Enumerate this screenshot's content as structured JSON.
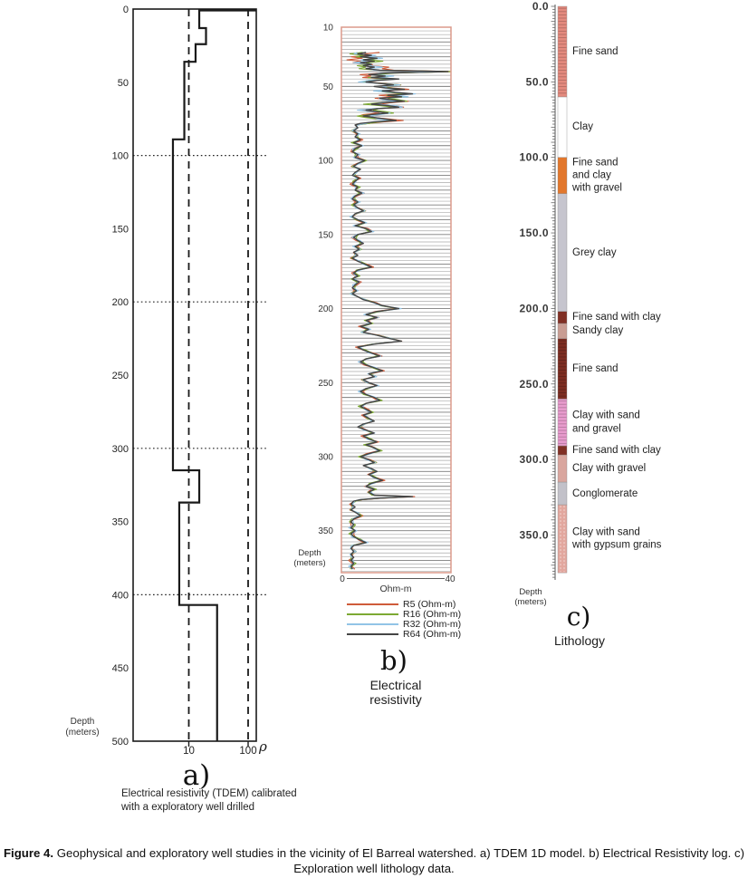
{
  "figure_caption": {
    "label": "Figure 4.",
    "text": " Geophysical and exploratory well studies in the vicinity of El Barreal watershed. a) TDEM 1D model. b) Electrical Resistivity log. c) Exploration well lithology data."
  },
  "panel_a": {
    "letter": "a)",
    "caption_line1": "Electrical resistivity (TDEM) calibrated",
    "caption_line2": "with a exploratory well drilled",
    "depth_label_line1": "Depth",
    "depth_label_line2": "(meters)",
    "x_symbol": "ρ"
  },
  "panel_b": {
    "letter": "b)",
    "title_line1": "Electrical",
    "title_line2": "resistivity",
    "x_label": "Ohm-m",
    "depth_label_line1": "Depth",
    "depth_label_line2": "(meters)"
  },
  "panel_c": {
    "letter": "c)",
    "title": "Lithology",
    "depth_label_line1": "Depth",
    "depth_label_line2": "(meters)"
  },
  "chart_data": [
    {
      "id": "a",
      "type": "line",
      "subtype": "step-resistivity-model",
      "title": "TDEM 1D model",
      "x_scale": "log",
      "x_ticks": [
        10,
        100
      ],
      "x_label": "ρ",
      "y_label": "Depth (meters)",
      "y_range": [
        0,
        500
      ],
      "y_ticks": [
        0,
        50,
        100,
        150,
        200,
        250,
        300,
        350,
        400,
        450,
        500
      ],
      "dashed_x_values": [
        10,
        100
      ],
      "dotted_y_values": [
        100,
        200,
        300,
        400
      ],
      "layers_depth_from_to_resistivity_ohmm": [
        [
          0,
          13,
          15.0
        ],
        [
          13,
          24,
          19.5
        ],
        [
          24,
          36,
          13.0
        ],
        [
          36,
          89,
          8.4
        ],
        [
          89,
          315,
          5.4
        ],
        [
          315,
          337,
          15.0
        ],
        [
          337,
          407,
          6.9
        ],
        [
          407,
          500,
          30.0
        ]
      ]
    },
    {
      "id": "b",
      "type": "line",
      "title": "Electrical resistivity",
      "x_label": "Ohm-m",
      "x_range": [
        0,
        40
      ],
      "y_label": "Depth (meters)",
      "y_ticks": [
        10,
        50,
        100,
        150,
        200,
        250,
        300,
        350
      ],
      "y_max_depth": 378,
      "grid_spacing_m": 2.5,
      "legend": [
        {
          "name": "R5 (Ohm-m)",
          "color": "#cf5b3a"
        },
        {
          "name": "R16 (Ohm-m)",
          "color": "#7ca933"
        },
        {
          "name": "R32 (Ohm-m)",
          "color": "#92c4e6"
        },
        {
          "name": "R64 (Ohm-m)",
          "color": "#454545"
        }
      ],
      "base_series": "R64 (Ohm-m)",
      "points_depth_ohm": [
        [
          27,
          9
        ],
        [
          28,
          6
        ],
        [
          29,
          11
        ],
        [
          30,
          7
        ],
        [
          31,
          13
        ],
        [
          32,
          8
        ],
        [
          33,
          12
        ],
        [
          34,
          7
        ],
        [
          35,
          11
        ],
        [
          36,
          8
        ],
        [
          37,
          12
        ],
        [
          38,
          9
        ],
        [
          39,
          14
        ],
        [
          40,
          39
        ],
        [
          41,
          16
        ],
        [
          42,
          10
        ],
        [
          43,
          16
        ],
        [
          44,
          11
        ],
        [
          45,
          21
        ],
        [
          46,
          13
        ],
        [
          47,
          9
        ],
        [
          48,
          14
        ],
        [
          49,
          19
        ],
        [
          50,
          12
        ],
        [
          51,
          16
        ],
        [
          52,
          23
        ],
        [
          53,
          15
        ],
        [
          54,
          20
        ],
        [
          55,
          26
        ],
        [
          56,
          17
        ],
        [
          57,
          22
        ],
        [
          58,
          14
        ],
        [
          59,
          18
        ],
        [
          60,
          23
        ],
        [
          61,
          15
        ],
        [
          62,
          11
        ],
        [
          63,
          17
        ],
        [
          64,
          21
        ],
        [
          65,
          13
        ],
        [
          66,
          9
        ],
        [
          67,
          13
        ],
        [
          68,
          17
        ],
        [
          69,
          11
        ],
        [
          70,
          8
        ],
        [
          71,
          12
        ],
        [
          72,
          16
        ],
        [
          73,
          20
        ],
        [
          74,
          12
        ],
        [
          75,
          7
        ],
        [
          76,
          5
        ],
        [
          78,
          6
        ],
        [
          80,
          4.5
        ],
        [
          82,
          6
        ],
        [
          84,
          5
        ],
        [
          86,
          7
        ],
        [
          88,
          4.5
        ],
        [
          90,
          7.5
        ],
        [
          92,
          5
        ],
        [
          94,
          4
        ],
        [
          96,
          6
        ],
        [
          98,
          5
        ],
        [
          100,
          8.5
        ],
        [
          102,
          6
        ],
        [
          104,
          4.5
        ],
        [
          106,
          7
        ],
        [
          108,
          5
        ],
        [
          110,
          4
        ],
        [
          112,
          6.5
        ],
        [
          114,
          5
        ],
        [
          116,
          4
        ],
        [
          118,
          6
        ],
        [
          120,
          5
        ],
        [
          122,
          7.5
        ],
        [
          124,
          5
        ],
        [
          126,
          4
        ],
        [
          128,
          6
        ],
        [
          130,
          4.5
        ],
        [
          132,
          6
        ],
        [
          134,
          8
        ],
        [
          136,
          5
        ],
        [
          138,
          4
        ],
        [
          140,
          6
        ],
        [
          142,
          8.5
        ],
        [
          144,
          5
        ],
        [
          146,
          9
        ],
        [
          148,
          11
        ],
        [
          150,
          6
        ],
        [
          152,
          4.5
        ],
        [
          154,
          6
        ],
        [
          156,
          8
        ],
        [
          158,
          5
        ],
        [
          160,
          6.5
        ],
        [
          162,
          4.5
        ],
        [
          164,
          6
        ],
        [
          166,
          4
        ],
        [
          168,
          6
        ],
        [
          170,
          8.5
        ],
        [
          172,
          11
        ],
        [
          174,
          6
        ],
        [
          176,
          4.5
        ],
        [
          178,
          6
        ],
        [
          180,
          4
        ],
        [
          182,
          6.5
        ],
        [
          184,
          5
        ],
        [
          186,
          4
        ],
        [
          188,
          5.5
        ],
        [
          190,
          4
        ],
        [
          192,
          6
        ],
        [
          194,
          8
        ],
        [
          196,
          12
        ],
        [
          198,
          15
        ],
        [
          200,
          21
        ],
        [
          202,
          13
        ],
        [
          204,
          9
        ],
        [
          206,
          13
        ],
        [
          208,
          9
        ],
        [
          210,
          11
        ],
        [
          212,
          7
        ],
        [
          214,
          10
        ],
        [
          216,
          8
        ],
        [
          218,
          13
        ],
        [
          220,
          17
        ],
        [
          222,
          22
        ],
        [
          224,
          12
        ],
        [
          226,
          6
        ],
        [
          228,
          8
        ],
        [
          230,
          11
        ],
        [
          232,
          14
        ],
        [
          234,
          9
        ],
        [
          236,
          7
        ],
        [
          238,
          9
        ],
        [
          240,
          12
        ],
        [
          242,
          15
        ],
        [
          244,
          10
        ],
        [
          246,
          12
        ],
        [
          248,
          8
        ],
        [
          250,
          10
        ],
        [
          252,
          13
        ],
        [
          254,
          9
        ],
        [
          256,
          7
        ],
        [
          258,
          9
        ],
        [
          260,
          12
        ],
        [
          262,
          14
        ],
        [
          264,
          9
        ],
        [
          266,
          7
        ],
        [
          268,
          9
        ],
        [
          270,
          11
        ],
        [
          272,
          8
        ],
        [
          274,
          10
        ],
        [
          276,
          12
        ],
        [
          278,
          8
        ],
        [
          280,
          6
        ],
        [
          282,
          9
        ],
        [
          284,
          12
        ],
        [
          286,
          8
        ],
        [
          288,
          10
        ],
        [
          290,
          13
        ],
        [
          292,
          9
        ],
        [
          294,
          12
        ],
        [
          296,
          14
        ],
        [
          298,
          10
        ],
        [
          300,
          7
        ],
        [
          302,
          10
        ],
        [
          304,
          12
        ],
        [
          306,
          8
        ],
        [
          308,
          11
        ],
        [
          310,
          13
        ],
        [
          312,
          10
        ],
        [
          314,
          12
        ],
        [
          316,
          15
        ],
        [
          318,
          11
        ],
        [
          320,
          9
        ],
        [
          322,
          12
        ],
        [
          324,
          10
        ],
        [
          326,
          12
        ],
        [
          327,
          26
        ],
        [
          328,
          14
        ],
        [
          329,
          7
        ],
        [
          330,
          4.5
        ],
        [
          332,
          3.5
        ],
        [
          334,
          5
        ],
        [
          336,
          3.5
        ],
        [
          338,
          5.5
        ],
        [
          340,
          7
        ],
        [
          342,
          4.5
        ],
        [
          344,
          3.5
        ],
        [
          346,
          4.5
        ],
        [
          348,
          3.5
        ],
        [
          350,
          5
        ],
        [
          352,
          3.5
        ],
        [
          354,
          4.5
        ],
        [
          356,
          6.5
        ],
        [
          358,
          9
        ],
        [
          360,
          4.5
        ],
        [
          362,
          3.5
        ],
        [
          364,
          4.5
        ],
        [
          366,
          3.5
        ],
        [
          368,
          4.5
        ],
        [
          370,
          3.5
        ],
        [
          372,
          4.5
        ],
        [
          374,
          3.5
        ],
        [
          376,
          4
        ]
      ]
    },
    {
      "id": "c",
      "type": "table",
      "subtype": "lithology-column",
      "title": "Lithology",
      "y_label": "Depth (meters)",
      "y_tick_labels": [
        "0.0",
        "50.0",
        "100.0",
        "150.0",
        "200.0",
        "250.0",
        "300.0",
        "350.0"
      ],
      "units": [
        {
          "from": 0,
          "to": 60,
          "label": "Fine sand",
          "color": "#e48a7e",
          "texture": "hstripes"
        },
        {
          "from": 60,
          "to": 100,
          "label": "Clay",
          "color": "#ffffff",
          "texture": "none"
        },
        {
          "from": 100,
          "to": 124,
          "label": "Fine sand and clay with gravel",
          "lines": [
            "Fine sand",
            "and clay",
            "with gravel"
          ],
          "color": "#e2772c",
          "texture": "none"
        },
        {
          "from": 124,
          "to": 202,
          "label": "Grey clay",
          "color": "#c6c5ce",
          "texture": "none"
        },
        {
          "from": 202,
          "to": 210,
          "label": "Fine sand with clay",
          "color": "#802f24",
          "texture": "none"
        },
        {
          "from": 210,
          "to": 220,
          "label": "Sandy clay",
          "color": "#c99d93",
          "texture": "none"
        },
        {
          "from": 220,
          "to": 260,
          "label": "Fine sand",
          "color": "#7d2d22",
          "texture": "hstripes"
        },
        {
          "from": 260,
          "to": 291,
          "label": "Clay with sand and gravel",
          "lines": [
            "Clay with sand",
            "and gravel"
          ],
          "color": "#e89bcd",
          "texture": "hstripes"
        },
        {
          "from": 291,
          "to": 297,
          "label": "Fine sand with clay",
          "color": "#802f24",
          "texture": "none"
        },
        {
          "from": 297,
          "to": 315,
          "label": "Clay with gravel",
          "color": "#d9a69e",
          "texture": "none"
        },
        {
          "from": 315,
          "to": 330,
          "label": "Conglomerate",
          "color": "#c2c1c9",
          "texture": "none"
        },
        {
          "from": 330,
          "to": 375,
          "label": "Clay with sand with gypsum grains",
          "lines": [
            "Clay with sand",
            "with gypsum grains"
          ],
          "color": "#e2a79e",
          "texture": "vstripes"
        }
      ]
    }
  ]
}
